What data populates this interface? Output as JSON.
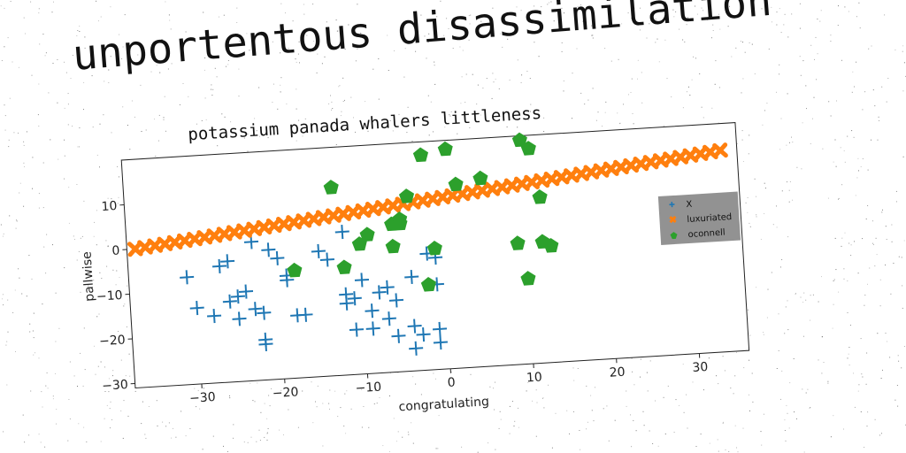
{
  "page": {
    "main_title": "unportentous disassimilation"
  },
  "chart_data": {
    "type": "scatter",
    "title": "potassium panada whalers littleness",
    "xlabel": "congratulating",
    "ylabel": "pallwise",
    "xlim": [
      -38,
      36
    ],
    "ylim": [
      -31,
      20
    ],
    "xticks": [
      -30,
      -20,
      -10,
      0,
      10,
      20,
      30
    ],
    "yticks": [
      -30,
      -20,
      -10,
      0,
      10
    ],
    "grid": false,
    "legend_position": "right",
    "series": [
      {
        "name": "X",
        "marker": "plus",
        "color": "#1f77b4",
        "points": [
          [
            -31,
            -7
          ],
          [
            -30,
            -14
          ],
          [
            -28,
            -16
          ],
          [
            -27,
            -5
          ],
          [
            -26,
            -4
          ],
          [
            -26,
            -13
          ],
          [
            -25,
            -12
          ],
          [
            -25,
            -17
          ],
          [
            -24,
            -11
          ],
          [
            -23,
            0
          ],
          [
            -23,
            -15
          ],
          [
            -22,
            -16
          ],
          [
            -22,
            -22
          ],
          [
            -22,
            -23
          ],
          [
            -21,
            -2
          ],
          [
            -20,
            -4
          ],
          [
            -19,
            -9
          ],
          [
            -19,
            -8
          ],
          [
            -18,
            -17
          ],
          [
            -17,
            -17
          ],
          [
            -15,
            -3
          ],
          [
            -14,
            -5
          ],
          [
            -12,
            1
          ],
          [
            -12,
            -15
          ],
          [
            -12,
            -13
          ],
          [
            -11,
            -21
          ],
          [
            -11,
            -14
          ],
          [
            -10,
            -10
          ],
          [
            -9,
            -21
          ],
          [
            -9,
            -17
          ],
          [
            -8,
            -13
          ],
          [
            -7,
            -19
          ],
          [
            -7,
            -12
          ],
          [
            -6,
            -23
          ],
          [
            -6,
            -15
          ],
          [
            -4,
            -10
          ],
          [
            -4,
            -21
          ],
          [
            -3,
            -23
          ],
          [
            -4,
            -26
          ],
          [
            -2,
            -5
          ],
          [
            -1,
            -6
          ],
          [
            -1,
            -25
          ],
          [
            -1,
            -12
          ],
          [
            -1,
            -22
          ]
        ]
      },
      {
        "name": "luxuriated",
        "marker": "x",
        "color": "#ff7f0e",
        "line": {
          "from": [
            -37,
            0
          ],
          "to": [
            34,
            14
          ],
          "count": 60
        }
      },
      {
        "name": "oconnell",
        "marker": "pentagon",
        "color": "#2ca02c",
        "points": [
          [
            -18,
            -7
          ],
          [
            -13,
            11
          ],
          [
            -12,
            -7
          ],
          [
            -10,
            -2
          ],
          [
            -9,
            0
          ],
          [
            -6,
            -3
          ],
          [
            -6,
            2
          ],
          [
            -5,
            2
          ],
          [
            -5,
            3
          ],
          [
            -4,
            8
          ],
          [
            -2,
            -12
          ],
          [
            -2,
            17
          ],
          [
            -1,
            -4
          ],
          [
            1,
            18
          ],
          [
            2,
            10
          ],
          [
            5,
            11
          ],
          [
            9,
            -4
          ],
          [
            10,
            -12
          ],
          [
            10,
            19
          ],
          [
            11,
            17
          ],
          [
            12,
            -4
          ],
          [
            12,
            6
          ],
          [
            13,
            -5
          ]
        ]
      }
    ]
  },
  "legend": {
    "items": [
      "X",
      "luxuriated",
      "oconnell"
    ]
  }
}
